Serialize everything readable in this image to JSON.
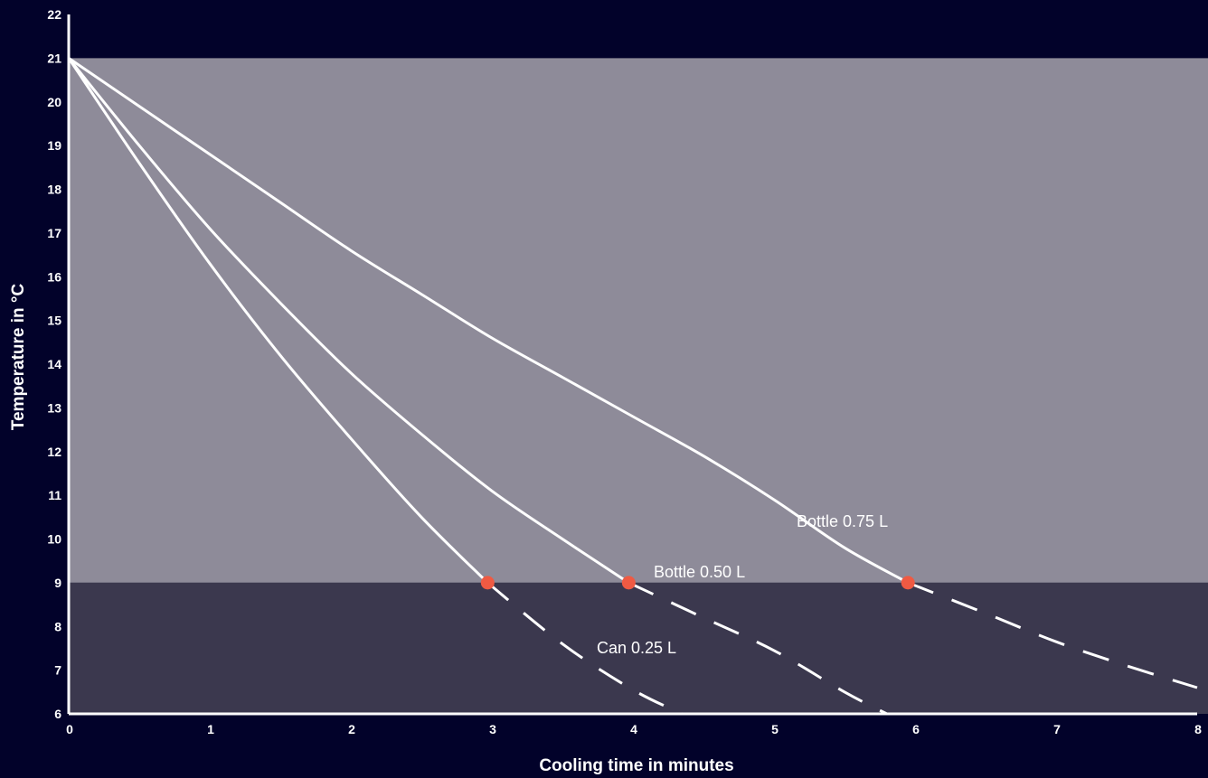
{
  "chart_data": {
    "type": "line",
    "xlabel": "Cooling time in minutes",
    "ylabel": "Temperature in °C",
    "xlim": [
      0,
      8
    ],
    "ylim": [
      6,
      22
    ],
    "x_ticks": [
      "0",
      "1",
      "2",
      "3",
      "4",
      "5",
      "6",
      "7",
      "8"
    ],
    "y_ticks": [
      "6",
      "7",
      "8",
      "9",
      "10",
      "11",
      "12",
      "13",
      "14",
      "15",
      "16",
      "17",
      "18",
      "19",
      "20",
      "21",
      "22"
    ],
    "grid": false,
    "bands": [
      {
        "from": 9,
        "to": 21,
        "color": "#8e8b99"
      },
      {
        "from": 6,
        "to": 9,
        "color": "#3b384e"
      }
    ],
    "threshold": 9,
    "series": [
      {
        "name": "Can 0.25 L",
        "marker_x": 2.97,
        "solid": [
          [
            0,
            21
          ],
          [
            0.5,
            18.6
          ],
          [
            1,
            16.3
          ],
          [
            1.5,
            14.2
          ],
          [
            2,
            12.3
          ],
          [
            2.5,
            10.5
          ],
          [
            2.97,
            9
          ]
        ],
        "dashed": [
          [
            2.97,
            9
          ],
          [
            3.5,
            7.6
          ],
          [
            4,
            6.55
          ],
          [
            4.35,
            6
          ]
        ]
      },
      {
        "name": "Bottle 0.50 L",
        "marker_x": 3.97,
        "solid": [
          [
            0,
            21
          ],
          [
            0.5,
            19
          ],
          [
            1,
            17.1
          ],
          [
            1.5,
            15.4
          ],
          [
            2,
            13.8
          ],
          [
            2.5,
            12.4
          ],
          [
            3,
            11.1
          ],
          [
            3.5,
            10
          ],
          [
            3.97,
            9
          ]
        ],
        "dashed": [
          [
            3.97,
            9
          ],
          [
            4.5,
            8.2
          ],
          [
            5,
            7.45
          ],
          [
            5.5,
            6.5
          ],
          [
            5.8,
            6
          ]
        ]
      },
      {
        "name": "Bottle 0.75 L",
        "marker_x": 5.95,
        "solid": [
          [
            0,
            21
          ],
          [
            0.5,
            19.9
          ],
          [
            1,
            18.8
          ],
          [
            1.5,
            17.7
          ],
          [
            2,
            16.6
          ],
          [
            2.5,
            15.6
          ],
          [
            3,
            14.6
          ],
          [
            3.5,
            13.7
          ],
          [
            4,
            12.8
          ],
          [
            4.5,
            11.9
          ],
          [
            5,
            10.9
          ],
          [
            5.5,
            9.8
          ],
          [
            5.95,
            9
          ]
        ],
        "dashed": [
          [
            5.95,
            9
          ],
          [
            6.5,
            8.3
          ],
          [
            7,
            7.65
          ],
          [
            7.5,
            7.1
          ],
          [
            8,
            6.6
          ]
        ]
      }
    ],
    "colors": {
      "background": "#02022a",
      "line": "#ffffff",
      "marker": "#ef5a43"
    }
  }
}
